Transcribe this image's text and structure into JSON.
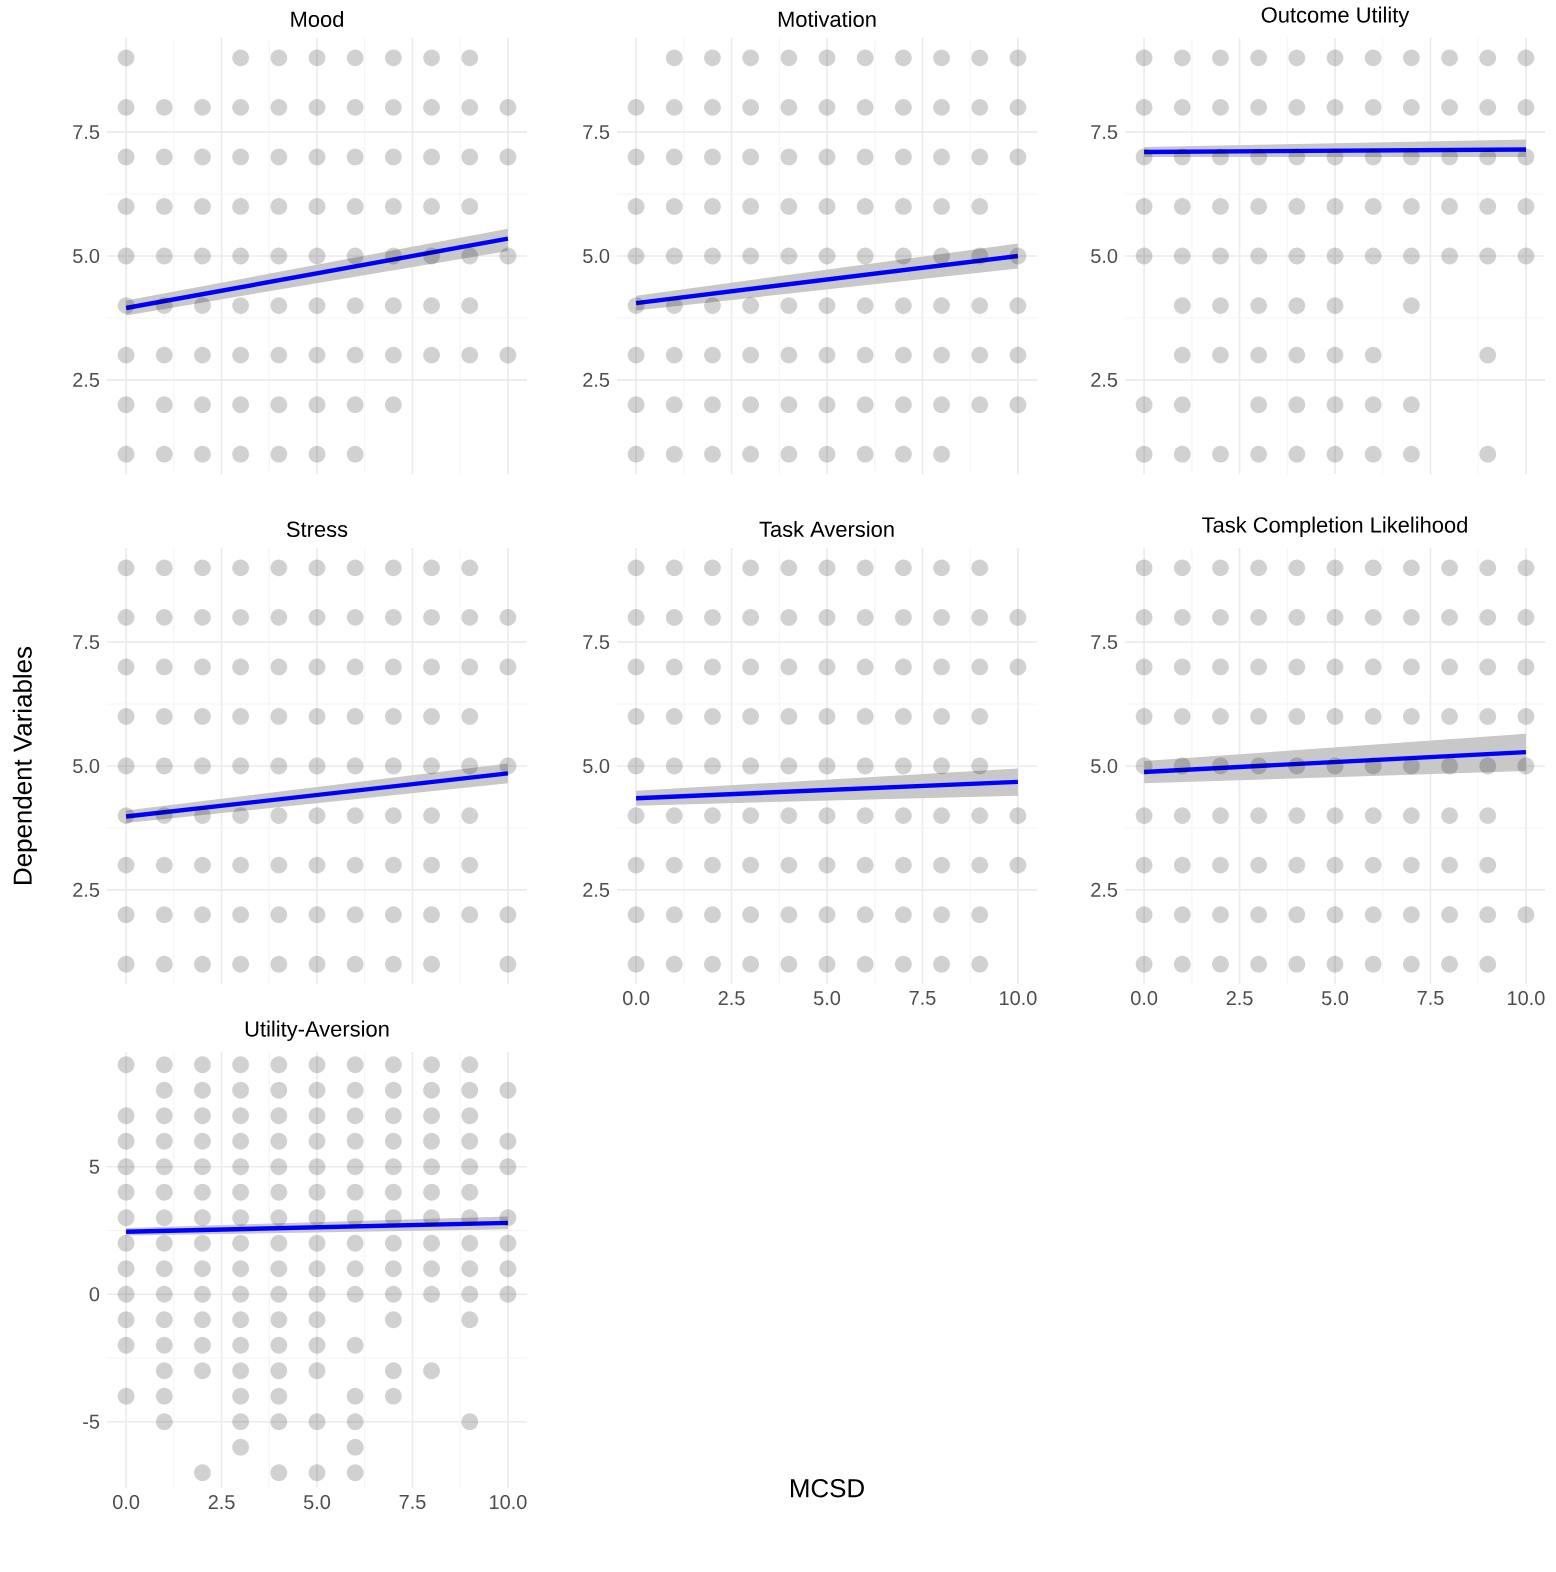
{
  "chart_data": [
    {
      "type": "scatter",
      "title": "Mood",
      "xlim": [
        -0.5,
        10.5
      ],
      "ylim": [
        0.6,
        9.4
      ],
      "xticks": [
        0,
        2.5,
        5,
        7.5,
        10
      ],
      "yticks": [
        {
          "value": 2.5,
          "label": "2.5"
        },
        {
          "value": 5,
          "label": "5.0"
        },
        {
          "value": 7.5,
          "label": "7.5"
        }
      ],
      "grid": true,
      "tick_labels": "y",
      "series": [
        {
          "color": "#000000",
          "marker": "circle",
          "x": [
            0,
            3,
            4,
            5,
            6,
            7,
            8,
            9,
            0,
            1,
            2,
            3,
            4,
            5,
            6,
            7,
            8,
            9,
            10,
            0,
            1,
            2,
            3,
            4,
            5,
            6,
            7,
            8,
            9,
            10,
            0,
            1,
            2,
            3,
            4,
            5,
            6,
            7,
            8,
            9,
            0,
            1,
            2,
            3,
            4,
            5,
            6,
            7,
            8,
            9,
            10,
            0,
            1,
            2,
            3,
            4,
            5,
            6,
            7,
            8,
            9,
            0,
            1,
            2,
            3,
            4,
            5,
            6,
            7,
            8,
            9,
            10,
            0,
            1,
            2,
            3,
            4,
            5,
            6,
            7,
            0,
            1,
            2,
            3,
            4,
            5,
            6
          ],
          "values": [
            9,
            9,
            9,
            9,
            9,
            9,
            9,
            9,
            8,
            8,
            8,
            8,
            8,
            8,
            8,
            8,
            8,
            8,
            8,
            7,
            7,
            7,
            7,
            7,
            7,
            7,
            7,
            7,
            7,
            7,
            6,
            6,
            6,
            6,
            6,
            6,
            6,
            6,
            6,
            6,
            5,
            5,
            5,
            5,
            5,
            5,
            5,
            5,
            5,
            5,
            5,
            4,
            4,
            4,
            4,
            4,
            4,
            4,
            4,
            4,
            4,
            3,
            3,
            3,
            3,
            3,
            3,
            3,
            3,
            3,
            3,
            3,
            2,
            2,
            2,
            2,
            2,
            2,
            2,
            2,
            1,
            1,
            1,
            1,
            1,
            1,
            1
          ]
        },
        {
          "type": "line",
          "color": "#0000ff",
          "x": [
            0,
            10
          ],
          "values": [
            3.95,
            5.35
          ],
          "lower": [
            3.8,
            5.1
          ],
          "upper": [
            4.1,
            5.55
          ]
        }
      ]
    },
    {
      "type": "scatter",
      "title": "Motivation",
      "xlim": [
        -0.5,
        10.5
      ],
      "ylim": [
        0.6,
        9.4
      ],
      "xticks": [
        0,
        2.5,
        5,
        7.5,
        10
      ],
      "yticks": [
        {
          "value": 2.5,
          "label": "2.5"
        },
        {
          "value": 5,
          "label": "5.0"
        },
        {
          "value": 7.5,
          "label": "7.5"
        }
      ],
      "grid": true,
      "tick_labels": "y",
      "series": [
        {
          "color": "#000000",
          "marker": "circle",
          "x": [
            1,
            2,
            3,
            4,
            5,
            6,
            7,
            8,
            9,
            10,
            0,
            1,
            2,
            3,
            4,
            5,
            6,
            7,
            8,
            9,
            10,
            0,
            1,
            2,
            3,
            4,
            5,
            6,
            7,
            8,
            9,
            10,
            0,
            1,
            2,
            3,
            4,
            5,
            6,
            7,
            8,
            9,
            0,
            1,
            2,
            3,
            4,
            5,
            6,
            7,
            8,
            9,
            10,
            0,
            1,
            2,
            3,
            4,
            5,
            6,
            7,
            8,
            9,
            10,
            0,
            1,
            2,
            3,
            4,
            5,
            6,
            7,
            8,
            9,
            10,
            0,
            1,
            2,
            3,
            4,
            5,
            6,
            7,
            8,
            9,
            10,
            0,
            1,
            2,
            3,
            4,
            5,
            6,
            7,
            8
          ],
          "values": [
            9,
            9,
            9,
            9,
            9,
            9,
            9,
            9,
            9,
            9,
            8,
            8,
            8,
            8,
            8,
            8,
            8,
            8,
            8,
            8,
            8,
            7,
            7,
            7,
            7,
            7,
            7,
            7,
            7,
            7,
            7,
            7,
            6,
            6,
            6,
            6,
            6,
            6,
            6,
            6,
            6,
            6,
            5,
            5,
            5,
            5,
            5,
            5,
            5,
            5,
            5,
            5,
            5,
            4,
            4,
            4,
            4,
            4,
            4,
            4,
            4,
            4,
            4,
            4,
            3,
            3,
            3,
            3,
            3,
            3,
            3,
            3,
            3,
            3,
            3,
            2,
            2,
            2,
            2,
            2,
            2,
            2,
            2,
            2,
            2,
            2,
            1,
            1,
            1,
            1,
            1,
            1,
            1,
            1,
            1
          ]
        },
        {
          "type": "line",
          "color": "#0000ff",
          "x": [
            0,
            10
          ],
          "values": [
            4.05,
            5.0
          ],
          "lower": [
            3.9,
            4.75
          ],
          "upper": [
            4.2,
            5.25
          ]
        }
      ]
    },
    {
      "type": "scatter",
      "title": "Outcome Utility",
      "xlim": [
        -0.5,
        10.5
      ],
      "ylim": [
        0.6,
        9.4
      ],
      "xticks": [
        0,
        2.5,
        5,
        7.5,
        10
      ],
      "yticks": [
        {
          "value": 2.5,
          "label": "2.5"
        },
        {
          "value": 5,
          "label": "5.0"
        },
        {
          "value": 7.5,
          "label": "7.5"
        }
      ],
      "grid": true,
      "tick_labels": "y",
      "series": [
        {
          "color": "#000000",
          "marker": "circle",
          "x": [
            0,
            1,
            2,
            3,
            4,
            5,
            6,
            7,
            8,
            9,
            10,
            0,
            1,
            2,
            3,
            4,
            5,
            6,
            7,
            8,
            9,
            10,
            0,
            1,
            2,
            3,
            4,
            5,
            6,
            7,
            8,
            9,
            10,
            0,
            1,
            2,
            3,
            4,
            5,
            6,
            7,
            8,
            9,
            10,
            0,
            1,
            2,
            3,
            4,
            5,
            6,
            7,
            8,
            9,
            10,
            1,
            2,
            3,
            4,
            5,
            7,
            1,
            2,
            3,
            4,
            5,
            6,
            9,
            0,
            1,
            3,
            4,
            5,
            6,
            7,
            0,
            1,
            2,
            3,
            4,
            5,
            6,
            7,
            9
          ],
          "values": [
            9,
            9,
            9,
            9,
            9,
            9,
            9,
            9,
            9,
            9,
            9,
            8,
            8,
            8,
            8,
            8,
            8,
            8,
            8,
            8,
            8,
            8,
            7,
            7,
            7,
            7,
            7,
            7,
            7,
            7,
            7,
            7,
            7,
            6,
            6,
            6,
            6,
            6,
            6,
            6,
            6,
            6,
            6,
            6,
            5,
            5,
            5,
            5,
            5,
            5,
            5,
            5,
            5,
            5,
            5,
            4,
            4,
            4,
            4,
            4,
            4,
            3,
            3,
            3,
            3,
            3,
            3,
            3,
            2,
            2,
            2,
            2,
            2,
            2,
            2,
            1,
            1,
            1,
            1,
            1,
            1,
            1,
            1,
            1
          ]
        },
        {
          "type": "line",
          "color": "#0000ff",
          "x": [
            0,
            10
          ],
          "values": [
            7.1,
            7.15
          ],
          "lower": [
            7.0,
            7.0
          ],
          "upper": [
            7.2,
            7.35
          ]
        }
      ]
    },
    {
      "type": "scatter",
      "title": "Stress",
      "ylabel": "Dependent Variables",
      "xlim": [
        -0.5,
        10.5
      ],
      "ylim": [
        0.6,
        9.4
      ],
      "xticks": [
        0,
        2.5,
        5,
        7.5,
        10
      ],
      "yticks": [
        {
          "value": 2.5,
          "label": "2.5"
        },
        {
          "value": 5,
          "label": "5.0"
        },
        {
          "value": 7.5,
          "label": "7.5"
        }
      ],
      "grid": true,
      "tick_labels": "y",
      "series": [
        {
          "color": "#000000",
          "marker": "circle",
          "x": [
            0,
            1,
            2,
            3,
            4,
            5,
            6,
            7,
            8,
            9,
            0,
            1,
            2,
            3,
            4,
            5,
            6,
            7,
            8,
            9,
            10,
            0,
            1,
            2,
            3,
            4,
            5,
            6,
            7,
            8,
            9,
            10,
            0,
            1,
            2,
            3,
            4,
            5,
            6,
            7,
            8,
            9,
            0,
            1,
            2,
            3,
            4,
            5,
            6,
            7,
            8,
            9,
            10,
            0,
            1,
            2,
            3,
            4,
            5,
            6,
            7,
            8,
            9,
            0,
            1,
            2,
            3,
            4,
            5,
            6,
            7,
            8,
            9,
            0,
            1,
            2,
            3,
            4,
            5,
            6,
            7,
            8,
            9,
            10,
            0,
            1,
            2,
            3,
            4,
            5,
            6,
            7,
            8,
            10
          ],
          "values": [
            9,
            9,
            9,
            9,
            9,
            9,
            9,
            9,
            9,
            9,
            8,
            8,
            8,
            8,
            8,
            8,
            8,
            8,
            8,
            8,
            8,
            7,
            7,
            7,
            7,
            7,
            7,
            7,
            7,
            7,
            7,
            7,
            6,
            6,
            6,
            6,
            6,
            6,
            6,
            6,
            6,
            6,
            5,
            5,
            5,
            5,
            5,
            5,
            5,
            5,
            5,
            5,
            5,
            4,
            4,
            4,
            4,
            4,
            4,
            4,
            4,
            4,
            4,
            3,
            3,
            3,
            3,
            3,
            3,
            3,
            3,
            3,
            3,
            2,
            2,
            2,
            2,
            2,
            2,
            2,
            2,
            2,
            2,
            2,
            1,
            1,
            1,
            1,
            1,
            1,
            1,
            1,
            1,
            1
          ]
        },
        {
          "type": "line",
          "color": "#0000ff",
          "x": [
            0,
            10
          ],
          "values": [
            3.98,
            4.85
          ],
          "lower": [
            3.85,
            4.65
          ],
          "upper": [
            4.1,
            5.05
          ]
        }
      ]
    },
    {
      "type": "scatter",
      "title": "Task Aversion",
      "xlabel": "MCSD",
      "xlim": [
        -0.5,
        10.5
      ],
      "ylim": [
        0.6,
        9.4
      ],
      "xticks": [
        {
          "value": 0,
          "label": "0.0"
        },
        {
          "value": 2.5,
          "label": "2.5"
        },
        {
          "value": 5,
          "label": "5.0"
        },
        {
          "value": 7.5,
          "label": "7.5"
        },
        {
          "value": 10,
          "label": "10.0"
        }
      ],
      "yticks": [
        {
          "value": 2.5,
          "label": "2.5"
        },
        {
          "value": 5,
          "label": "5.0"
        },
        {
          "value": 7.5,
          "label": "7.5"
        }
      ],
      "grid": true,
      "series": [
        {
          "color": "#000000",
          "marker": "circle",
          "x": [
            0,
            1,
            2,
            3,
            4,
            5,
            6,
            7,
            8,
            9,
            0,
            1,
            2,
            3,
            4,
            5,
            6,
            7,
            8,
            9,
            10,
            0,
            1,
            2,
            3,
            4,
            5,
            6,
            7,
            8,
            9,
            10,
            0,
            1,
            2,
            3,
            4,
            5,
            6,
            7,
            8,
            9,
            0,
            1,
            2,
            3,
            4,
            5,
            6,
            7,
            8,
            9,
            0,
            1,
            2,
            3,
            4,
            5,
            6,
            7,
            8,
            9,
            10,
            0,
            1,
            2,
            3,
            4,
            5,
            6,
            7,
            8,
            9,
            10,
            0,
            1,
            2,
            3,
            4,
            5,
            6,
            7,
            8,
            9,
            0,
            1,
            2,
            3,
            4,
            5,
            6,
            7,
            8,
            9
          ],
          "values": [
            9,
            9,
            9,
            9,
            9,
            9,
            9,
            9,
            9,
            9,
            8,
            8,
            8,
            8,
            8,
            8,
            8,
            8,
            8,
            8,
            8,
            7,
            7,
            7,
            7,
            7,
            7,
            7,
            7,
            7,
            7,
            7,
            6,
            6,
            6,
            6,
            6,
            6,
            6,
            6,
            6,
            6,
            5,
            5,
            5,
            5,
            5,
            5,
            5,
            5,
            5,
            5,
            4,
            4,
            4,
            4,
            4,
            4,
            4,
            4,
            4,
            4,
            4,
            3,
            3,
            3,
            3,
            3,
            3,
            3,
            3,
            3,
            3,
            3,
            2,
            2,
            2,
            2,
            2,
            2,
            2,
            2,
            2,
            2,
            1,
            1,
            1,
            1,
            1,
            1,
            1,
            1,
            1,
            1
          ]
        },
        {
          "type": "line",
          "color": "#0000ff",
          "x": [
            0,
            10
          ],
          "values": [
            4.35,
            4.68
          ],
          "lower": [
            4.2,
            4.4
          ],
          "upper": [
            4.5,
            4.95
          ]
        }
      ]
    },
    {
      "type": "scatter",
      "title": "Task Completion Likelihood",
      "xlim": [
        -0.5,
        10.5
      ],
      "ylim": [
        0.6,
        9.4
      ],
      "xticks": [
        {
          "value": 0,
          "label": "0.0"
        },
        {
          "value": 2.5,
          "label": "2.5"
        },
        {
          "value": 5,
          "label": "5.0"
        },
        {
          "value": 7.5,
          "label": "7.5"
        },
        {
          "value": 10,
          "label": "10.0"
        }
      ],
      "yticks": [
        {
          "value": 2.5,
          "label": "2.5"
        },
        {
          "value": 5,
          "label": "5.0"
        },
        {
          "value": 7.5,
          "label": "7.5"
        }
      ],
      "grid": true,
      "series": [
        {
          "color": "#000000",
          "marker": "circle",
          "x": [
            0,
            1,
            2,
            3,
            4,
            5,
            6,
            7,
            8,
            9,
            10,
            0,
            1,
            2,
            3,
            4,
            5,
            6,
            7,
            8,
            9,
            10,
            0,
            1,
            2,
            3,
            4,
            5,
            6,
            7,
            8,
            9,
            10,
            0,
            1,
            2,
            3,
            4,
            5,
            6,
            7,
            8,
            9,
            10,
            0,
            1,
            2,
            3,
            4,
            5,
            6,
            7,
            8,
            9,
            10,
            0,
            1,
            2,
            3,
            4,
            5,
            6,
            7,
            8,
            9,
            0,
            1,
            2,
            3,
            4,
            5,
            6,
            7,
            8,
            9,
            0,
            1,
            2,
            3,
            4,
            5,
            6,
            7,
            8,
            9,
            10,
            0,
            1,
            2,
            3,
            4,
            5,
            6,
            7,
            8,
            9
          ],
          "values": [
            9,
            9,
            9,
            9,
            9,
            9,
            9,
            9,
            9,
            9,
            9,
            8,
            8,
            8,
            8,
            8,
            8,
            8,
            8,
            8,
            8,
            8,
            7,
            7,
            7,
            7,
            7,
            7,
            7,
            7,
            7,
            7,
            7,
            6,
            6,
            6,
            6,
            6,
            6,
            6,
            6,
            6,
            6,
            6,
            5,
            5,
            5,
            5,
            5,
            5,
            5,
            5,
            5,
            5,
            5,
            4,
            4,
            4,
            4,
            4,
            4,
            4,
            4,
            4,
            4,
            3,
            3,
            3,
            3,
            3,
            3,
            3,
            3,
            3,
            3,
            2,
            2,
            2,
            2,
            2,
            2,
            2,
            2,
            2,
            2,
            2,
            1,
            1,
            1,
            1,
            1,
            1,
            1,
            1,
            1,
            1
          ]
        },
        {
          "type": "line",
          "color": "#0000ff",
          "x": [
            0,
            10
          ],
          "values": [
            4.88,
            5.28
          ],
          "lower": [
            4.65,
            4.9
          ],
          "upper": [
            5.1,
            5.65
          ]
        }
      ]
    },
    {
      "type": "scatter",
      "title": "Utility-Aversion",
      "xlim": [
        -0.5,
        10.5
      ],
      "ylim": [
        -7.6,
        9.5
      ],
      "xticks": [
        {
          "value": 0,
          "label": "0.0"
        },
        {
          "value": 2.5,
          "label": "2.5"
        },
        {
          "value": 5,
          "label": "5.0"
        },
        {
          "value": 7.5,
          "label": "7.5"
        },
        {
          "value": 10,
          "label": "10.0"
        }
      ],
      "yticks": [
        -5,
        0,
        5
      ],
      "grid": true,
      "series": [
        {
          "color": "#000000",
          "marker": "circle",
          "x": [
            0,
            1,
            2,
            3,
            4,
            5,
            6,
            7,
            8,
            9,
            1,
            2,
            3,
            4,
            5,
            6,
            7,
            8,
            9,
            10,
            0,
            1,
            2,
            3,
            4,
            5,
            6,
            7,
            8,
            9,
            0,
            1,
            2,
            3,
            4,
            5,
            6,
            7,
            8,
            9,
            10,
            0,
            1,
            2,
            3,
            4,
            5,
            6,
            7,
            8,
            9,
            10,
            0,
            1,
            2,
            3,
            4,
            5,
            6,
            7,
            8,
            9,
            0,
            1,
            2,
            3,
            4,
            5,
            6,
            7,
            8,
            9,
            10,
            0,
            1,
            2,
            3,
            4,
            5,
            6,
            7,
            8,
            9,
            10,
            0,
            1,
            2,
            3,
            4,
            5,
            6,
            7,
            8,
            9,
            10,
            0,
            1,
            2,
            3,
            4,
            5,
            6,
            7,
            8,
            9,
            10,
            0,
            1,
            2,
            3,
            4,
            5,
            7,
            9,
            0,
            1,
            2,
            3,
            4,
            5,
            6,
            1,
            2,
            3,
            4,
            5,
            7,
            8,
            0,
            1,
            3,
            4,
            6,
            7,
            1,
            3,
            4,
            5,
            6,
            9,
            3,
            6,
            2,
            4,
            5,
            6
          ],
          "values": [
            9,
            9,
            9,
            9,
            9,
            9,
            9,
            9,
            9,
            9,
            8,
            8,
            8,
            8,
            8,
            8,
            8,
            8,
            8,
            8,
            7,
            7,
            7,
            7,
            7,
            7,
            7,
            7,
            7,
            7,
            6,
            6,
            6,
            6,
            6,
            6,
            6,
            6,
            6,
            6,
            6,
            5,
            5,
            5,
            5,
            5,
            5,
            5,
            5,
            5,
            5,
            5,
            4,
            4,
            4,
            4,
            4,
            4,
            4,
            4,
            4,
            4,
            3,
            3,
            3,
            3,
            3,
            3,
            3,
            3,
            3,
            3,
            3,
            2,
            2,
            2,
            2,
            2,
            2,
            2,
            2,
            2,
            2,
            2,
            1,
            1,
            1,
            1,
            1,
            1,
            1,
            1,
            1,
            1,
            1,
            0,
            0,
            0,
            0,
            0,
            0,
            0,
            0,
            0,
            0,
            0,
            -1,
            -1,
            -1,
            -1,
            -1,
            -1,
            -1,
            -1,
            -2,
            -2,
            -2,
            -2,
            -2,
            -2,
            -2,
            -3,
            -3,
            -3,
            -3,
            -3,
            -3,
            -3,
            -4,
            -4,
            -4,
            -4,
            -4,
            -4,
            -5,
            -5,
            -5,
            -5,
            -5,
            -5,
            -6,
            -6,
            -7,
            -7,
            -7,
            -7
          ]
        },
        {
          "type": "line",
          "color": "#0000ff",
          "x": [
            0,
            10
          ],
          "values": [
            2.45,
            2.8
          ],
          "lower": [
            2.3,
            2.55
          ],
          "upper": [
            2.6,
            3.05
          ]
        }
      ]
    }
  ]
}
